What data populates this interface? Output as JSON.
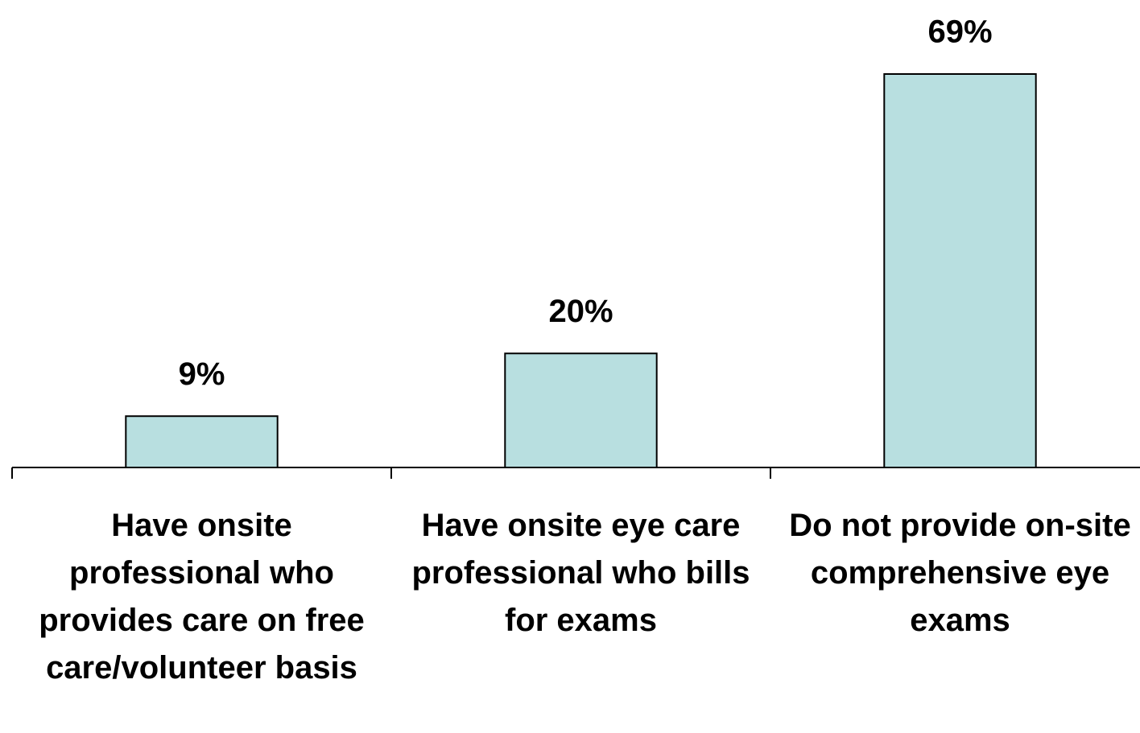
{
  "chart_data": {
    "type": "bar",
    "categories": [
      "Have onsite professional who provides care on free care/volunteer basis",
      "Have onsite eye care professional who bills for exams",
      "Do not provide on-site comprehensive eye exams"
    ],
    "values": [
      9,
      20,
      69
    ],
    "value_labels": [
      "9%",
      "20%",
      "69%"
    ],
    "color": "#b8dfe0"
  }
}
